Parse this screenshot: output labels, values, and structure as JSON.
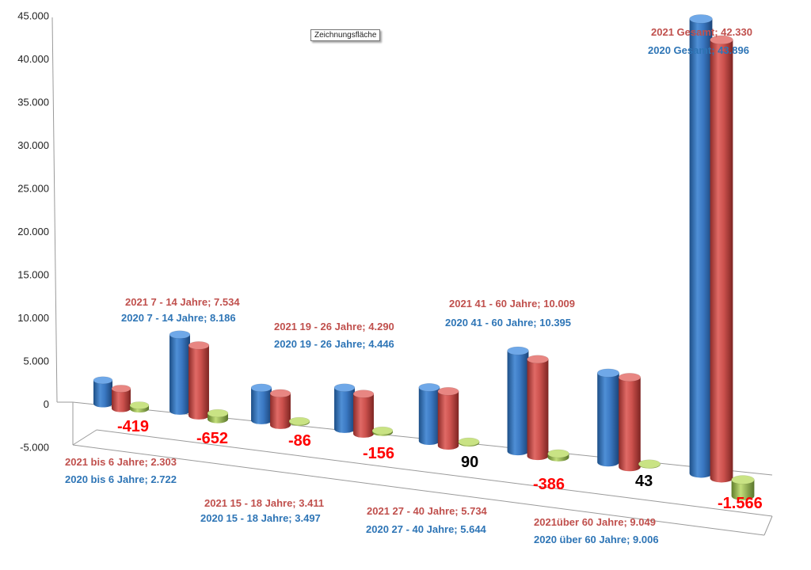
{
  "tooltip": "Zeichnungsfläche",
  "colors": {
    "y2020": "#2e75b6",
    "y2021": "#c0504d",
    "diff": "#9bbb59",
    "negative": "#ff0000",
    "positive": "#000000"
  },
  "chart_data": {
    "type": "bar",
    "title": "",
    "ylim": [
      -5000,
      45000
    ],
    "yticks": [
      "-5.000",
      "0",
      "5.000",
      "10.000",
      "15.000",
      "20.000",
      "25.000",
      "30.000",
      "35.000",
      "40.000",
      "45.000"
    ],
    "categories": [
      "bis 6 Jahre",
      "7 - 14 Jahre",
      "15 - 18 Jahre",
      "19 - 26 Jahre",
      "27 - 40 Jahre",
      "41 - 60 Jahre",
      "über 60 Jahre",
      "Gesamt"
    ],
    "series": [
      {
        "name": "2020",
        "values": [
          2722,
          8186,
          3497,
          4446,
          5644,
          10395,
          9006,
          43896
        ]
      },
      {
        "name": "2021",
        "values": [
          2303,
          7534,
          3411,
          4290,
          5734,
          10009,
          9049,
          42330
        ]
      },
      {
        "name": "",
        "values": [
          -419,
          -652,
          -86,
          -156,
          90,
          -386,
          43,
          -1566
        ]
      }
    ],
    "difference_labels": [
      "-419",
      "-652",
      "-86",
      "-156",
      "90",
      "-386",
      "43",
      "-1.566"
    ],
    "labels_2021": [
      "2021 bis 6 Jahre; 2.303",
      "2021 7 - 14 Jahre; 7.534",
      "2021 15 - 18 Jahre; 3.411",
      "2021 19 - 26 Jahre; 4.290",
      "2021 27 - 40 Jahre; 5.734",
      "2021 41 - 60 Jahre; 10.009",
      "2021über 60 Jahre; 9.049",
      "2021 Gesamt; 42.330"
    ],
    "labels_2020": [
      "2020 bis 6 Jahre; 2.722",
      "2020 7 - 14 Jahre; 8.186",
      "2020 15 - 18 Jahre; 3.497",
      "2020 19 - 26 Jahre; 4.446",
      "2020 27 - 40 Jahre; 5.644",
      "2020 41 - 60 Jahre; 10.395",
      "2020 über 60 Jahre; 9.006",
      "2020 Gesamt; 43.896"
    ],
    "grid": false,
    "view": "3d-perspective"
  }
}
